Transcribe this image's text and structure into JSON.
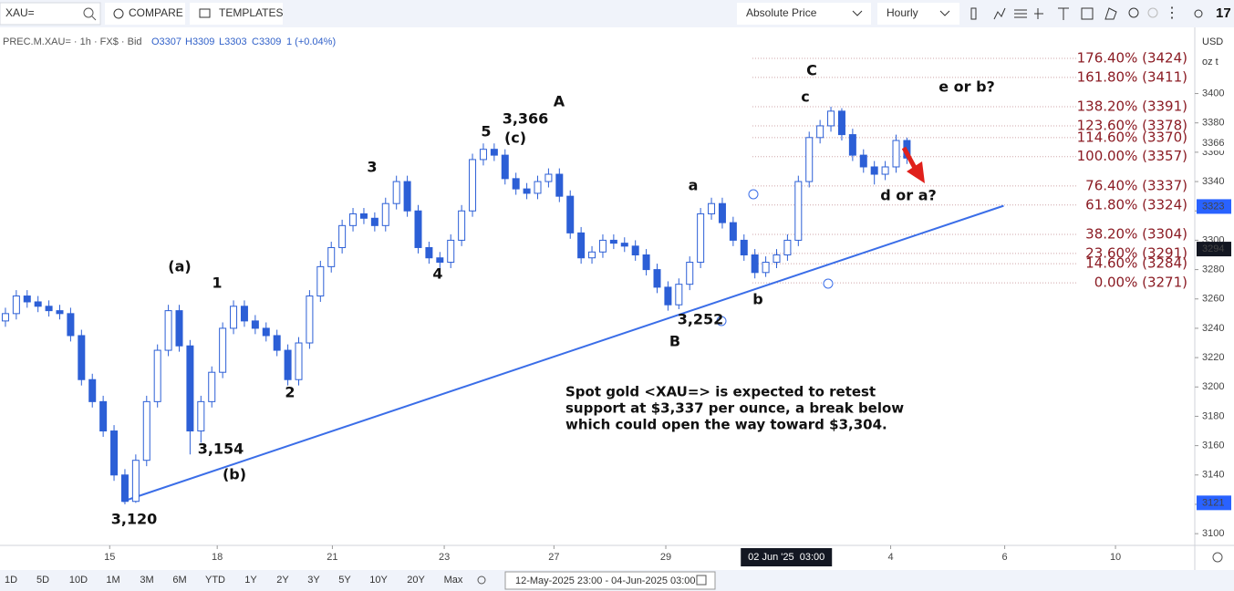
{
  "toolbar": {
    "symbol": "XAU=",
    "compare": "COMPARE",
    "templates": "TEMPLATES",
    "price_mode": "Absolute Price",
    "interval": "Hourly"
  },
  "legend": {
    "instrument": "PREC.M.XAU= · 1h · FX$ · Bid",
    "open": "O3307",
    "high": "H3309",
    "low": "L3303",
    "close": "C3309",
    "change": "1 (+0.04%)"
  },
  "chart_data": {
    "type": "candlestick",
    "color": "#2c5fd6",
    "open": [
      3245,
      3250,
      3262,
      3258,
      3255,
      3252,
      3250,
      3235,
      3205,
      3190,
      3170,
      3140,
      3122,
      3150,
      3190,
      3225,
      3252,
      3228,
      3170,
      3190,
      3210,
      3240,
      3255,
      3245,
      3240,
      3235,
      3225,
      3205,
      3230,
      3262,
      3282,
      3295,
      3310,
      3318,
      3315,
      3310,
      3325,
      3340,
      3320,
      3295,
      3288,
      3285,
      3300,
      3320,
      3355,
      3362,
      3358,
      3342,
      3335,
      3332,
      3340,
      3345,
      3330,
      3305,
      3288,
      3292,
      3300,
      3298,
      3296,
      3290,
      3280,
      3268,
      3256,
      3270,
      3285,
      3318,
      3325,
      3312,
      3300,
      3290,
      3278,
      3285,
      3290,
      3300,
      3340,
      3370,
      3378,
      3388,
      3372,
      3358,
      3350,
      3345,
      3350,
      3368
    ],
    "high": [
      3254,
      3266,
      3266,
      3262,
      3259,
      3256,
      3254,
      3239,
      3209,
      3194,
      3174,
      3144,
      3154,
      3194,
      3229,
      3256,
      3256,
      3232,
      3194,
      3214,
      3244,
      3259,
      3259,
      3249,
      3244,
      3239,
      3229,
      3234,
      3266,
      3286,
      3299,
      3314,
      3322,
      3322,
      3319,
      3329,
      3344,
      3344,
      3324,
      3299,
      3292,
      3304,
      3324,
      3359,
      3366,
      3366,
      3362,
      3346,
      3339,
      3344,
      3349,
      3349,
      3334,
      3309,
      3296,
      3304,
      3304,
      3302,
      3300,
      3294,
      3284,
      3272,
      3274,
      3289,
      3322,
      3329,
      3329,
      3316,
      3304,
      3294,
      3289,
      3294,
      3304,
      3344,
      3374,
      3382,
      3391,
      3390,
      3376,
      3362,
      3354,
      3354,
      3372,
      3370
    ],
    "low": [
      3241,
      3246,
      3254,
      3251,
      3248,
      3246,
      3231,
      3201,
      3186,
      3166,
      3136,
      3120,
      3121,
      3146,
      3186,
      3221,
      3224,
      3154,
      3162,
      3186,
      3206,
      3236,
      3241,
      3236,
      3231,
      3221,
      3201,
      3201,
      3226,
      3258,
      3278,
      3291,
      3306,
      3311,
      3306,
      3306,
      3321,
      3316,
      3291,
      3284,
      3281,
      3281,
      3296,
      3316,
      3351,
      3354,
      3338,
      3331,
      3328,
      3328,
      3336,
      3326,
      3301,
      3284,
      3284,
      3288,
      3294,
      3292,
      3286,
      3276,
      3264,
      3252,
      3253,
      3266,
      3281,
      3314,
      3308,
      3296,
      3286,
      3274,
      3275,
      3281,
      3286,
      3296,
      3336,
      3366,
      3374,
      3368,
      3354,
      3346,
      3338,
      3341,
      3346,
      3352
    ],
    "close": [
      3250,
      3262,
      3258,
      3255,
      3252,
      3250,
      3235,
      3205,
      3190,
      3170,
      3140,
      3122,
      3150,
      3190,
      3225,
      3252,
      3228,
      3170,
      3190,
      3210,
      3240,
      3255,
      3245,
      3240,
      3235,
      3225,
      3205,
      3230,
      3262,
      3282,
      3295,
      3310,
      3318,
      3315,
      3310,
      3325,
      3340,
      3320,
      3295,
      3288,
      3285,
      3300,
      3320,
      3355,
      3362,
      3358,
      3342,
      3335,
      3332,
      3340,
      3345,
      3330,
      3305,
      3288,
      3292,
      3300,
      3298,
      3296,
      3290,
      3280,
      3268,
      3256,
      3270,
      3285,
      3318,
      3325,
      3312,
      3300,
      3290,
      3278,
      3285,
      3290,
      3300,
      3340,
      3370,
      3378,
      3388,
      3372,
      3358,
      3350,
      3345,
      3350,
      3368,
      3356
    ],
    "xlim": [
      -0.5,
      109.5
    ],
    "xticks": [
      {
        "value": 9.6,
        "label": "15"
      },
      {
        "value": 19.5,
        "label": "18"
      },
      {
        "value": 30.1,
        "label": "21"
      },
      {
        "value": 40.4,
        "label": "23"
      },
      {
        "value": 50.5,
        "label": "27"
      },
      {
        "value": 60.8,
        "label": "29"
      },
      {
        "value": 81.5,
        "label": "4"
      },
      {
        "value": 92.0,
        "label": "6"
      },
      {
        "value": 102.2,
        "label": "10"
      }
    ],
    "crosshair": {
      "value": 71.9,
      "label": "02 Jun '25  03:00"
    },
    "ylim": [
      3092,
      3442
    ],
    "yticks": [
      3100,
      3120,
      3140,
      3160,
      3180,
      3200,
      3220,
      3240,
      3260,
      3280,
      3300,
      3320,
      3340,
      3360,
      3380,
      3400
    ],
    "currency": "USD",
    "unit": "oz t",
    "price_labels": [
      {
        "value": 3366,
        "label": "3366",
        "color": "#ffffff"
      },
      {
        "value": 3323,
        "label": "3323",
        "color": "#2962ff"
      },
      {
        "value": 3294,
        "label": "3294",
        "color": "#131722"
      },
      {
        "value": 3121,
        "label": "3121",
        "color": "#2962ff"
      }
    ],
    "trendline": {
      "x": [
        10.8,
        91.9
      ],
      "y": [
        3122,
        3323.5
      ],
      "color": "#3b6ee8"
    },
    "fib_levels": [
      {
        "value": 3424,
        "label": "176.40% (3424)"
      },
      {
        "value": 3411,
        "label": "161.80% (3411)"
      },
      {
        "value": 3391,
        "label": "138.20% (3391)"
      },
      {
        "value": 3378,
        "label": "123.60% (3378)"
      },
      {
        "value": 3370,
        "label": "114.60% (3370)"
      },
      {
        "value": 3357,
        "label": "100.00% (3357)"
      },
      {
        "value": 3337,
        "label": "76.40% (3337)"
      },
      {
        "value": 3324,
        "label": "61.80% (3324)"
      },
      {
        "value": 3304,
        "label": "38.20% (3304)"
      },
      {
        "value": 3291,
        "label": "23.60% (3291)"
      },
      {
        "value": 3284,
        "label": "14.60% (3284)"
      },
      {
        "value": 3271,
        "label": "0.00% (3271)"
      }
    ],
    "fib_color": "#8b1c24",
    "annotations": [
      "(a)",
      "1",
      "2",
      "3",
      "4",
      "5",
      "3,366",
      "(c)",
      "A",
      "a",
      "3,252",
      "B",
      "b",
      "c",
      "C",
      "e or b?",
      "d or a?",
      "3,154",
      "(b)",
      "3,120"
    ],
    "note": [
      "Spot gold <XAU=> is expected to retest",
      "support at $3,337 per ounce, a break below",
      "which could open the way toward $3,304."
    ]
  },
  "range_buttons": [
    "1D",
    "5D",
    "10D",
    "1M",
    "3M",
    "6M",
    "YTD",
    "1Y",
    "2Y",
    "3Y",
    "5Y",
    "10Y",
    "20Y",
    "Max"
  ],
  "date_range": "12-May-2025 23:00 - 04-Jun-2025 03:00"
}
